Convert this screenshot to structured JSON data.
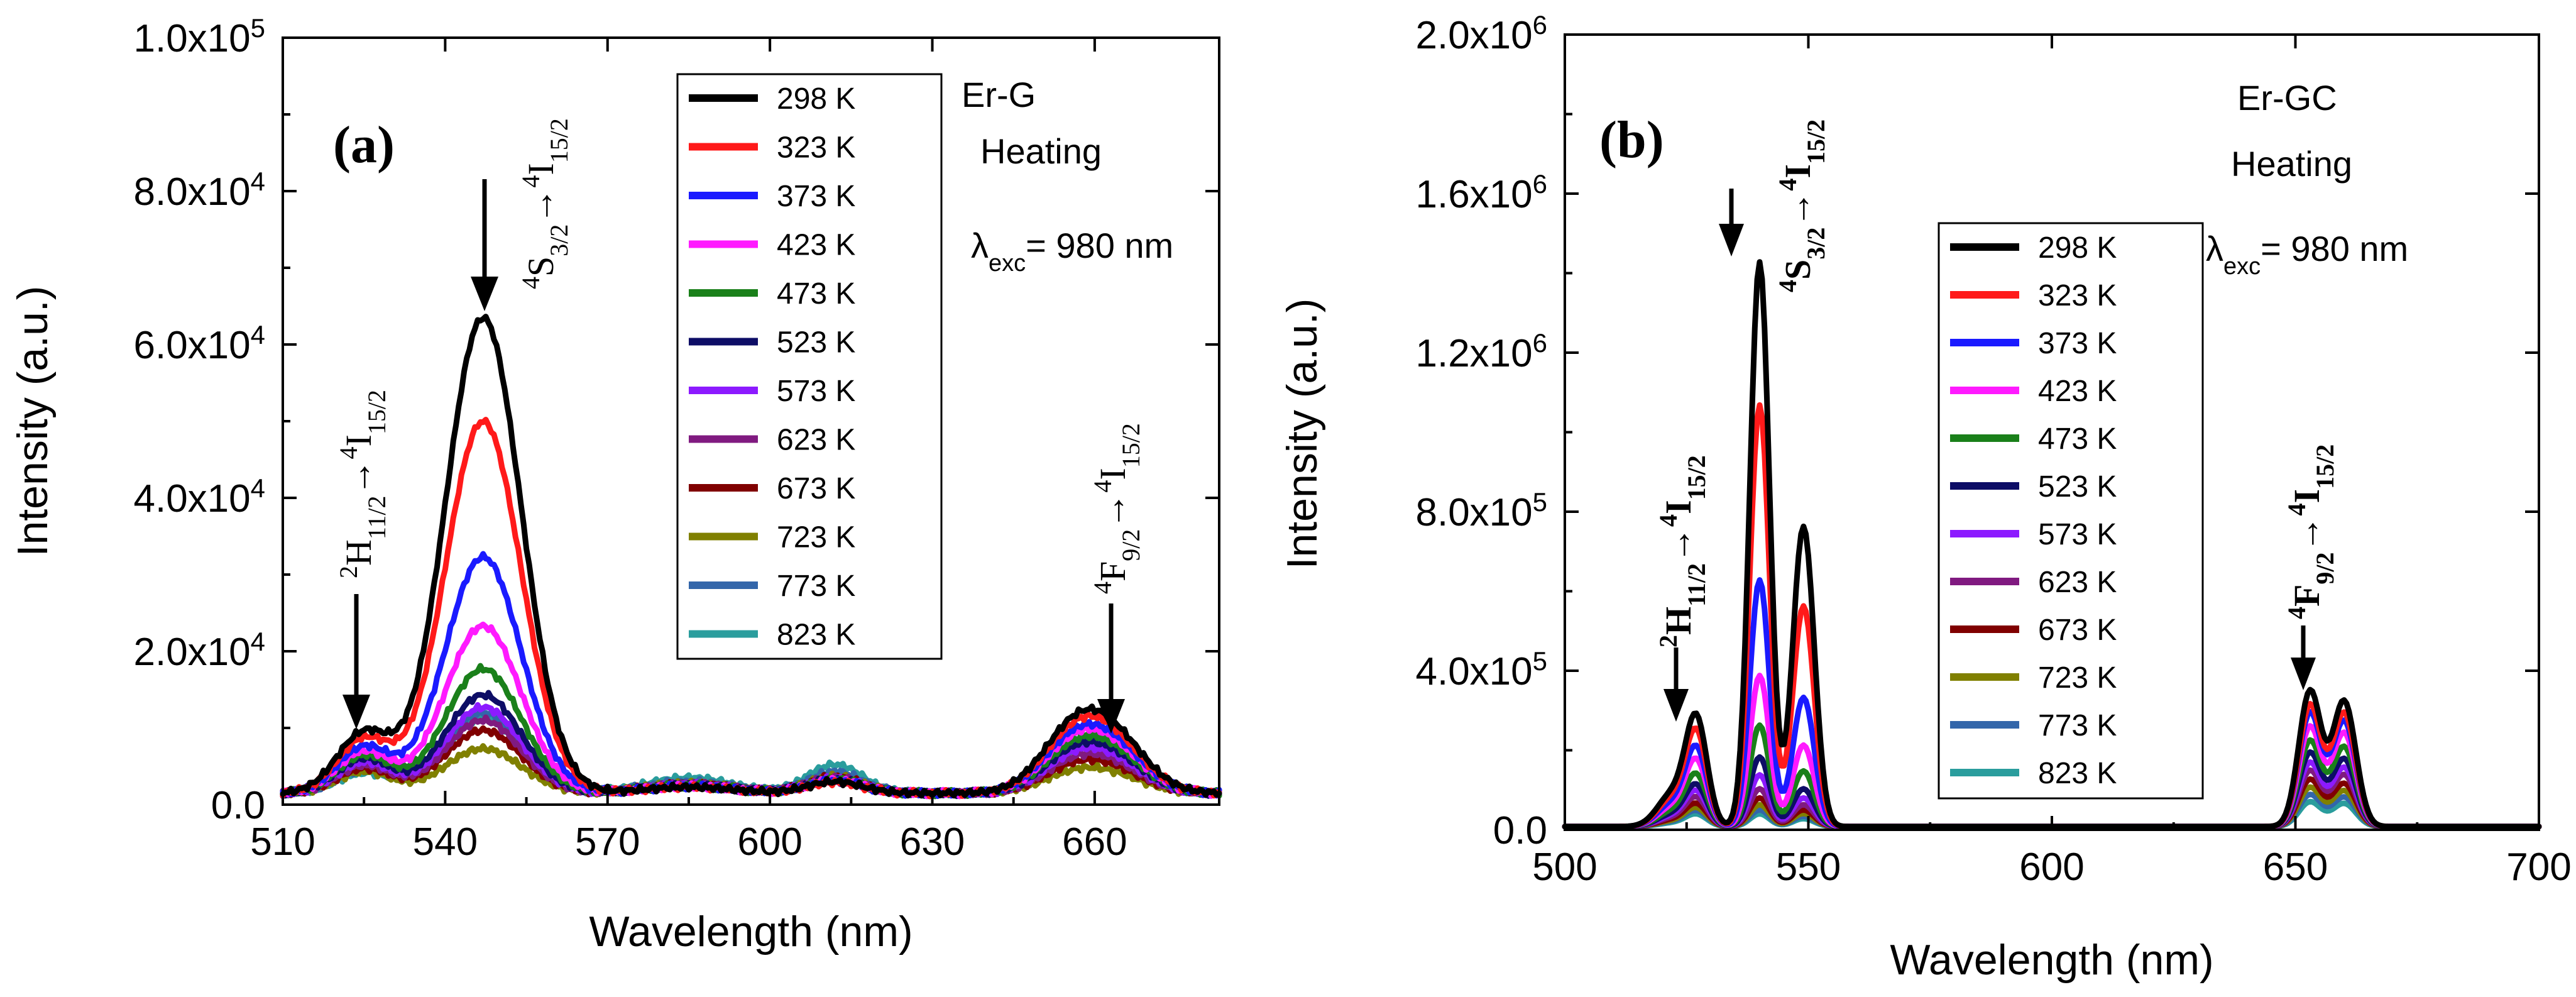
{
  "chart_data": [
    {
      "type": "line",
      "panel_label": "(a)",
      "sample": "Er-G",
      "mode": "Heating",
      "excitation": {
        "prefix": "λ",
        "sub": "exc",
        "text": "= 980 nm"
      },
      "xlabel": "Wavelength (nm)",
      "ylabel": "Intensity (a.u.)",
      "xlim": [
        510,
        683
      ],
      "ylim": [
        0,
        100000
      ],
      "x_ticks": [
        "510",
        "540",
        "570",
        "600",
        "630",
        "660"
      ],
      "x_tick_values": [
        510,
        540,
        570,
        600,
        630,
        660
      ],
      "y_ticks": [
        {
          "value": 0,
          "mant": "0.0",
          "exp": ""
        },
        {
          "value": 20000,
          "mant": "2.0x10",
          "exp": "4"
        },
        {
          "value": 40000,
          "mant": "4.0x10",
          "exp": "4"
        },
        {
          "value": 60000,
          "mant": "6.0x10",
          "exp": "4"
        },
        {
          "value": 80000,
          "mant": "8.0x10",
          "exp": "4"
        },
        {
          "value": 100000,
          "mant": "1.0x10",
          "exp": "5"
        }
      ],
      "transitions": [
        {
          "upper_sup": "2",
          "upper": "H",
          "upper_sub": "11/2",
          "lower_sup": "4",
          "lower": "I",
          "lower_sub": "15/2",
          "x": 525
        },
        {
          "upper_sup": "4",
          "upper": "S",
          "upper_sub": "3/2",
          "lower_sup": "4",
          "lower": "I",
          "lower_sub": "15/2",
          "x": 547
        },
        {
          "upper_sup": "4",
          "upper": "F",
          "upper_sub": "9/2",
          "lower_sup": "4",
          "lower": "I",
          "lower_sub": "15/2",
          "x": 658
        }
      ],
      "series": [
        {
          "name": "298 K",
          "color": "#000000",
          "peak525": 7800,
          "peak547": 62000,
          "peak658": 8500,
          "band585": 800,
          "band612": 1500
        },
        {
          "name": "323 K",
          "color": "#ff1a1a",
          "peak525": 7000,
          "peak547": 48500,
          "peak658": 7800,
          "band585": 800,
          "band612": 1400
        },
        {
          "name": "373 K",
          "color": "#1a1aff",
          "peak525": 6000,
          "peak547": 30800,
          "peak658": 7000,
          "band585": 900,
          "band612": 1600
        },
        {
          "name": "423 K",
          "color": "#ff1aff",
          "peak525": 5400,
          "peak547": 21800,
          "peak658": 6500,
          "band585": 900,
          "band612": 1700
        },
        {
          "name": "473 K",
          "color": "#1a801a",
          "peak525": 4900,
          "peak547": 16200,
          "peak658": 5800,
          "band585": 1000,
          "band612": 1800
        },
        {
          "name": "523 K",
          "color": "#0d0d66",
          "peak525": 4500,
          "peak547": 12800,
          "peak658": 5200,
          "band585": 1000,
          "band612": 1800
        },
        {
          "name": "573 K",
          "color": "#8c1aff",
          "peak525": 4000,
          "peak547": 11200,
          "peak658": 4600,
          "band585": 1100,
          "band612": 1900
        },
        {
          "name": "623 K",
          "color": "#801a80",
          "peak525": 3600,
          "peak547": 9500,
          "peak658": 4000,
          "band585": 1200,
          "band612": 2000
        },
        {
          "name": "673 K",
          "color": "#800000",
          "peak525": 3200,
          "peak547": 8200,
          "peak658": 3400,
          "band585": 1200,
          "band612": 2100
        },
        {
          "name": "723 K",
          "color": "#808000",
          "peak525": 2800,
          "peak547": 5800,
          "peak658": 2600,
          "band585": 1300,
          "band612": 2200
        },
        {
          "name": "773 K",
          "color": "#3366aa",
          "peak525": 3000,
          "peak547": 10500,
          "peak658": 4800,
          "band585": 1500,
          "band612": 2800
        },
        {
          "name": "823 K",
          "color": "#2a9d9d",
          "peak525": 2600,
          "peak547": 9800,
          "peak658": 5800,
          "band585": 2000,
          "band612": 3700
        }
      ]
    },
    {
      "type": "line",
      "panel_label": "(b)",
      "sample": "Er-GC",
      "mode": "Heating",
      "excitation": {
        "prefix": "λ",
        "sub": "exc",
        "text": "= 980 nm"
      },
      "xlabel": "Wavelength (nm)",
      "ylabel": "Intensity (a.u.)",
      "xlim": [
        500,
        700
      ],
      "ylim": [
        0,
        2000000
      ],
      "x_ticks": [
        "500",
        "550",
        "600",
        "650",
        "700"
      ],
      "x_tick_values": [
        500,
        550,
        600,
        650,
        700
      ],
      "y_ticks": [
        {
          "value": 0,
          "mant": "0.0",
          "exp": ""
        },
        {
          "value": 400000,
          "mant": "4.0x10",
          "exp": "5"
        },
        {
          "value": 800000,
          "mant": "8.0x10",
          "exp": "5"
        },
        {
          "value": 1200000,
          "mant": "1.2x10",
          "exp": "6"
        },
        {
          "value": 1600000,
          "mant": "1.6x10",
          "exp": "6"
        },
        {
          "value": 2000000,
          "mant": "2.0x10",
          "exp": "6"
        }
      ],
      "transitions": [
        {
          "upper_sup": "2",
          "upper": "H",
          "upper_sub": "11/2",
          "lower_sup": "4",
          "lower": "I",
          "lower_sub": "15/2",
          "x": 527
        },
        {
          "upper_sup": "4",
          "upper": "S",
          "upper_sub": "3/2",
          "lower_sup": "4",
          "lower": "I",
          "lower_sub": "15/2",
          "x": 540
        },
        {
          "upper_sup": "4",
          "upper": "F",
          "upper_sub": "9/2",
          "lower_sup": "4",
          "lower": "I",
          "lower_sub": "15/2",
          "x": 657
        }
      ],
      "series": [
        {
          "name": "298 K",
          "color": "#000000",
          "peak527": 265000,
          "peak540": 1420000,
          "peak549": 755000,
          "peak653": 340000,
          "peak660": 315000
        },
        {
          "name": "323 K",
          "color": "#ff1a1a",
          "peak527": 230000,
          "peak540": 1060000,
          "peak549": 555000,
          "peak653": 305000,
          "peak660": 285000
        },
        {
          "name": "373 K",
          "color": "#1a1aff",
          "peak527": 190000,
          "peak540": 620000,
          "peak549": 325000,
          "peak653": 285000,
          "peak660": 265000
        },
        {
          "name": "423 K",
          "color": "#ff1aff",
          "peak527": 160000,
          "peak540": 380000,
          "peak549": 205000,
          "peak653": 250000,
          "peak660": 235000
        },
        {
          "name": "473 K",
          "color": "#1a801a",
          "peak527": 125000,
          "peak540": 255000,
          "peak549": 140000,
          "peak653": 215000,
          "peak660": 200000
        },
        {
          "name": "523 K",
          "color": "#0d0d66",
          "peak527": 100000,
          "peak540": 175000,
          "peak549": 95000,
          "peak653": 185000,
          "peak660": 170000
        },
        {
          "name": "573 K",
          "color": "#8c1aff",
          "peak527": 85000,
          "peak540": 130000,
          "peak549": 72000,
          "peak653": 160000,
          "peak660": 148000
        },
        {
          "name": "623 K",
          "color": "#801a80",
          "peak527": 70000,
          "peak540": 95000,
          "peak549": 55000,
          "peak653": 140000,
          "peak660": 130000
        },
        {
          "name": "673 K",
          "color": "#800000",
          "peak527": 55000,
          "peak540": 72000,
          "peak549": 42000,
          "peak653": 118000,
          "peak660": 108000
        },
        {
          "name": "723 K",
          "color": "#808000",
          "peak527": 45000,
          "peak540": 55000,
          "peak549": 33000,
          "peak653": 98000,
          "peak660": 90000
        },
        {
          "name": "773 K",
          "color": "#3366aa",
          "peak527": 38000,
          "peak540": 42000,
          "peak549": 26000,
          "peak653": 80000,
          "peak660": 74000
        },
        {
          "name": "823 K",
          "color": "#2a9d9d",
          "peak527": 30000,
          "peak540": 32000,
          "peak549": 20000,
          "peak653": 62000,
          "peak660": 58000
        }
      ]
    }
  ]
}
